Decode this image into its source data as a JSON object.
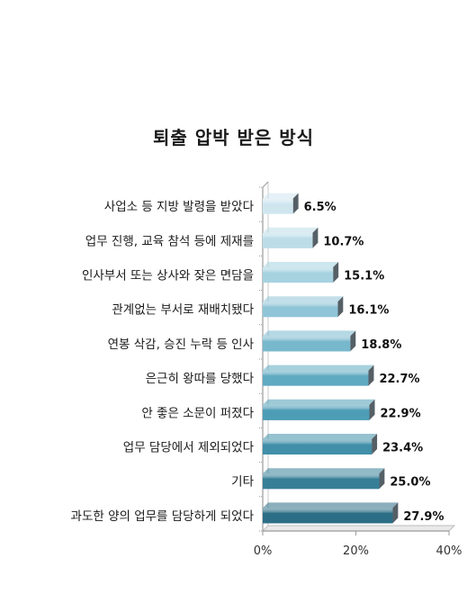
{
  "chart_data": {
    "type": "bar",
    "orientation": "horizontal",
    "title": "퇴출 압박 받은 방식",
    "categories": [
      "사업소 등 지방 발령을 받았다",
      "업무 진행, 교육 참석 등에 제재를",
      "인사부서 또는 상사와 잦은 면담을",
      "관계없는 부서로 재배치됐다",
      "연봉 삭감, 승진 누락 등 인사",
      "은근히 왕따를 당했다",
      "안 좋은 소문이 퍼졌다",
      "업무 담당에서 제외되었다",
      "기타",
      "과도한 양의 업무를 담당하게 되었다"
    ],
    "values": [
      6.5,
      10.7,
      15.1,
      16.1,
      18.8,
      22.7,
      22.9,
      23.4,
      25.0,
      27.9
    ],
    "data_labels": [
      "6.5%",
      "10.7%",
      "15.1%",
      "16.1%",
      "18.8%",
      "22.7%",
      "22.9%",
      "23.4%",
      "25.0%",
      "27.9%"
    ],
    "xlim": [
      0,
      40
    ],
    "xticks": [
      "0%",
      "20%",
      "40%"
    ],
    "grid": false,
    "colors": [
      "#cfe6ef",
      "#bcdde8",
      "#a6d2e0",
      "#8fc5d7",
      "#78b8cd",
      "#5fa9c1",
      "#4e9db6",
      "#418fa8",
      "#367f97",
      "#2c6e85"
    ]
  }
}
